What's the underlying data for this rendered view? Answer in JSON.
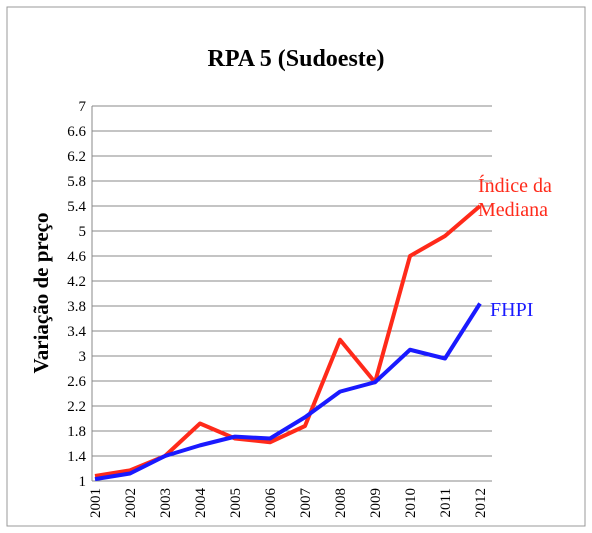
{
  "chart_data": {
    "type": "line",
    "title": "RPA 5 (Sudoeste)",
    "y_label": "Variação de preço",
    "categories": [
      "2001",
      "2002",
      "2003",
      "2004",
      "2005",
      "2006",
      "2007",
      "2008",
      "2009",
      "2010",
      "2011",
      "2012"
    ],
    "series": [
      {
        "name": "Índice da Mediana",
        "color": "#ff2a1a",
        "values": [
          1.08,
          1.17,
          1.4,
          1.92,
          1.68,
          1.62,
          1.88,
          3.26,
          2.58,
          4.6,
          4.92,
          5.4
        ]
      },
      {
        "name": "FHPI",
        "color": "#1a1aff",
        "values": [
          1.03,
          1.12,
          1.4,
          1.57,
          1.71,
          1.68,
          2.02,
          2.43,
          2.58,
          3.1,
          2.96,
          3.84
        ]
      }
    ],
    "ylim": [
      1,
      7
    ],
    "yticks": [
      1,
      1.4,
      1.8,
      2.2,
      2.6,
      3,
      3.4,
      3.8,
      4.2,
      4.6,
      5,
      5.4,
      5.8,
      6.2,
      6.6,
      7
    ],
    "grid": true
  }
}
